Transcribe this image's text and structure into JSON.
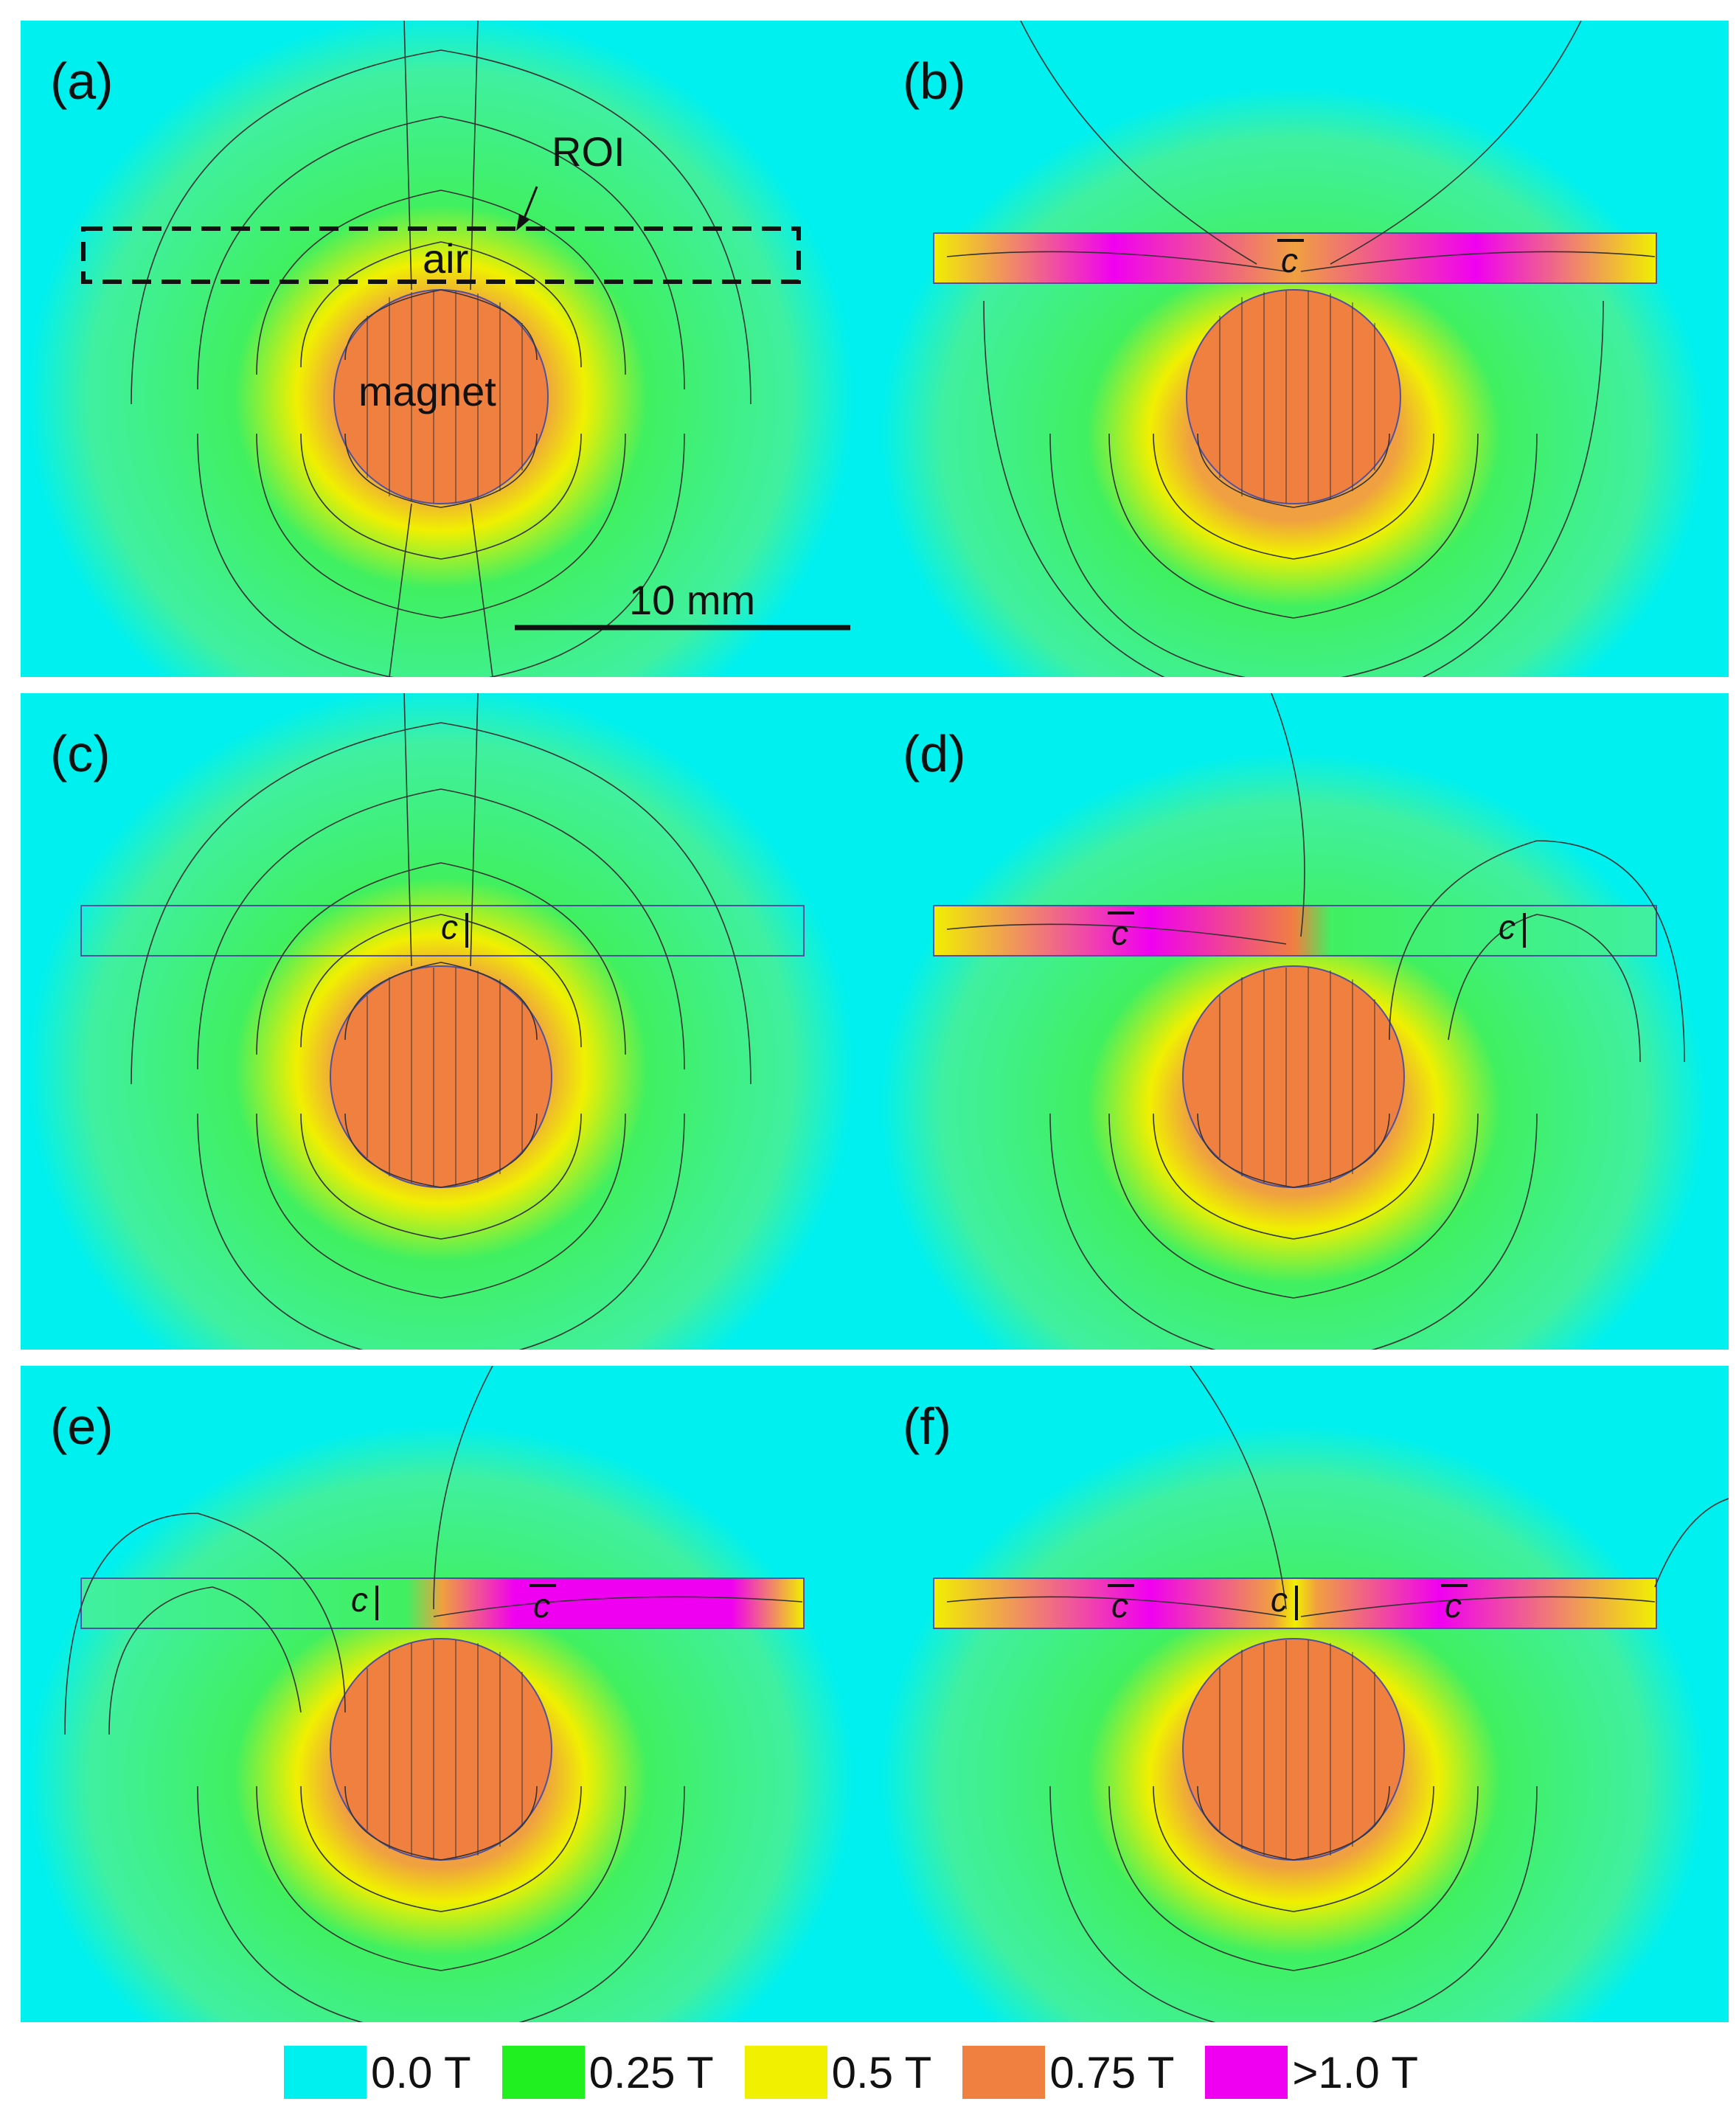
{
  "panels": [
    {
      "label": "(a)",
      "magnet_text": "magnet",
      "roi_text": "ROI",
      "air_text": "air",
      "scale_text": "10 mm"
    },
    {
      "label": "(b)",
      "region_b": "c"
    },
    {
      "label": "(c)",
      "region_a": "c"
    },
    {
      "label": "(d)",
      "region_b": "c",
      "region_a": "c"
    },
    {
      "label": "(e)",
      "region_a": "c",
      "region_b": "c"
    },
    {
      "label": "(f)",
      "region_b1": "c",
      "region_a": "c",
      "region_b2": "c"
    }
  ],
  "legend": [
    {
      "label": "0.0 T",
      "color": "#00F0F0"
    },
    {
      "label": "0.25 T",
      "color": "#20F020"
    },
    {
      "label": "0.5 T",
      "color": "#F0F000"
    },
    {
      "label": "0.75 T",
      "color": "#F08040"
    },
    {
      "label": ">1.0 T",
      "color": "#F000F0"
    }
  ]
}
